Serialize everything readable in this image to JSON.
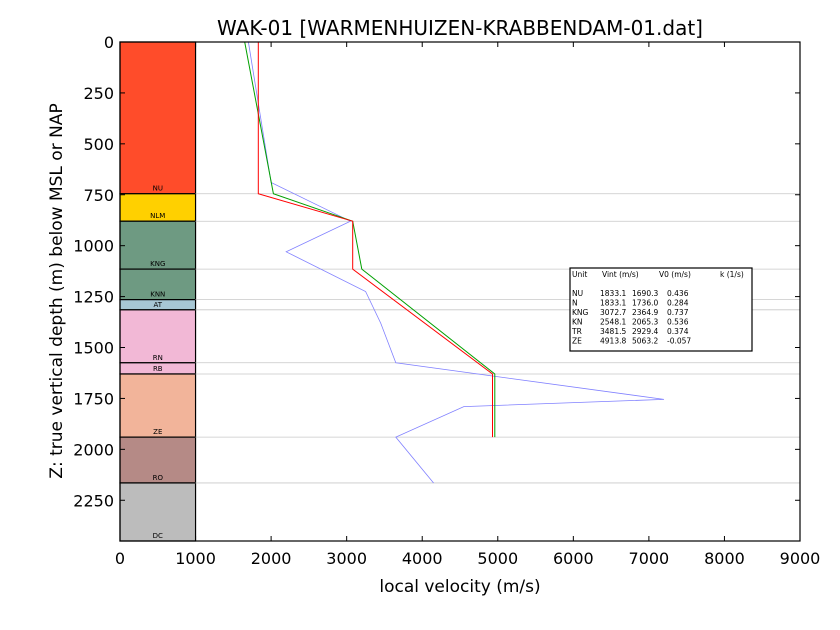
{
  "chart_data": {
    "type": "line",
    "title": "WAK-01 [WARMENHUIZEN-KRABBENDAM-01.dat]",
    "xlabel": "local velocity (m/s)",
    "ylabel": "Z: true vertical depth (m) below MSL or NAP",
    "xlim": [
      0,
      9000
    ],
    "ylim": [
      2450,
      0
    ],
    "y_inverted": true,
    "grid": false,
    "x_ticks": [
      0,
      1000,
      2000,
      3000,
      4000,
      5000,
      6000,
      7000,
      8000,
      9000
    ],
    "y_ticks": [
      0,
      250,
      500,
      750,
      1000,
      1250,
      1500,
      1750,
      2000,
      2250
    ],
    "units": [
      {
        "name": "NU",
        "top": 0,
        "bottom": 745,
        "color": "#ff4c2a"
      },
      {
        "name": "NLM",
        "top": 745,
        "bottom": 880,
        "color": "#ffd000"
      },
      {
        "name": "KNG",
        "top": 880,
        "bottom": 1115,
        "color": "#6e9a82"
      },
      {
        "name": "KNN",
        "top": 1115,
        "bottom": 1265,
        "color": "#6e9a82"
      },
      {
        "name": "AT",
        "top": 1265,
        "bottom": 1315,
        "color": "#a7c7d4"
      },
      {
        "name": "RN",
        "top": 1315,
        "bottom": 1575,
        "color": "#f2b8d6"
      },
      {
        "name": "RB",
        "top": 1575,
        "bottom": 1630,
        "color": "#f2b8d6"
      },
      {
        "name": "ZE",
        "top": 1630,
        "bottom": 1940,
        "color": "#f2b49a"
      },
      {
        "name": "RO",
        "top": 1940,
        "bottom": 2165,
        "color": "#b58a86"
      },
      {
        "name": "DC",
        "top": 2165,
        "bottom": 2450,
        "color": "#bcbcbc"
      }
    ],
    "boundary_lines": [
      745,
      880,
      1115,
      1265,
      1315,
      1575,
      1630,
      1940,
      2165
    ],
    "series": [
      {
        "color": "#8080ff",
        "x": [
          1700,
          2000,
          3050,
          2200,
          3250,
          3450,
          3650,
          7200,
          4550,
          3650,
          4150
        ],
        "y": [
          0,
          690,
          880,
          1030,
          1225,
          1380,
          1575,
          1755,
          1790,
          1940,
          2165
        ]
      },
      {
        "color": "#00a000",
        "x": [
          1650,
          2030,
          3080,
          3200,
          4960,
          4960
        ],
        "y": [
          0,
          745,
          880,
          1115,
          1630,
          1940
        ]
      },
      {
        "color": "#ff0000",
        "x": [
          1830,
          1830,
          3080,
          3080,
          4930,
          4930
        ],
        "y": [
          0,
          745,
          880,
          1115,
          1630,
          1940
        ]
      }
    ],
    "table": {
      "header": [
        "Unit",
        "Vint (m/s)",
        "V0 (m/s)",
        "k (1/s)"
      ],
      "rows": [
        [
          "NU",
          "1833.1",
          "1690.3",
          "0.436"
        ],
        [
          "N",
          "1833.1",
          "1736.0",
          "0.284"
        ],
        [
          "KNG",
          "3072.7",
          "2364.9",
          "0.737"
        ],
        [
          "KN",
          "2548.1",
          "2065.3",
          "0.536"
        ],
        [
          "TR",
          "3481.5",
          "2929.4",
          "0.374"
        ],
        [
          "ZE",
          "4913.8",
          "5063.2",
          "-0.057"
        ]
      ]
    }
  }
}
